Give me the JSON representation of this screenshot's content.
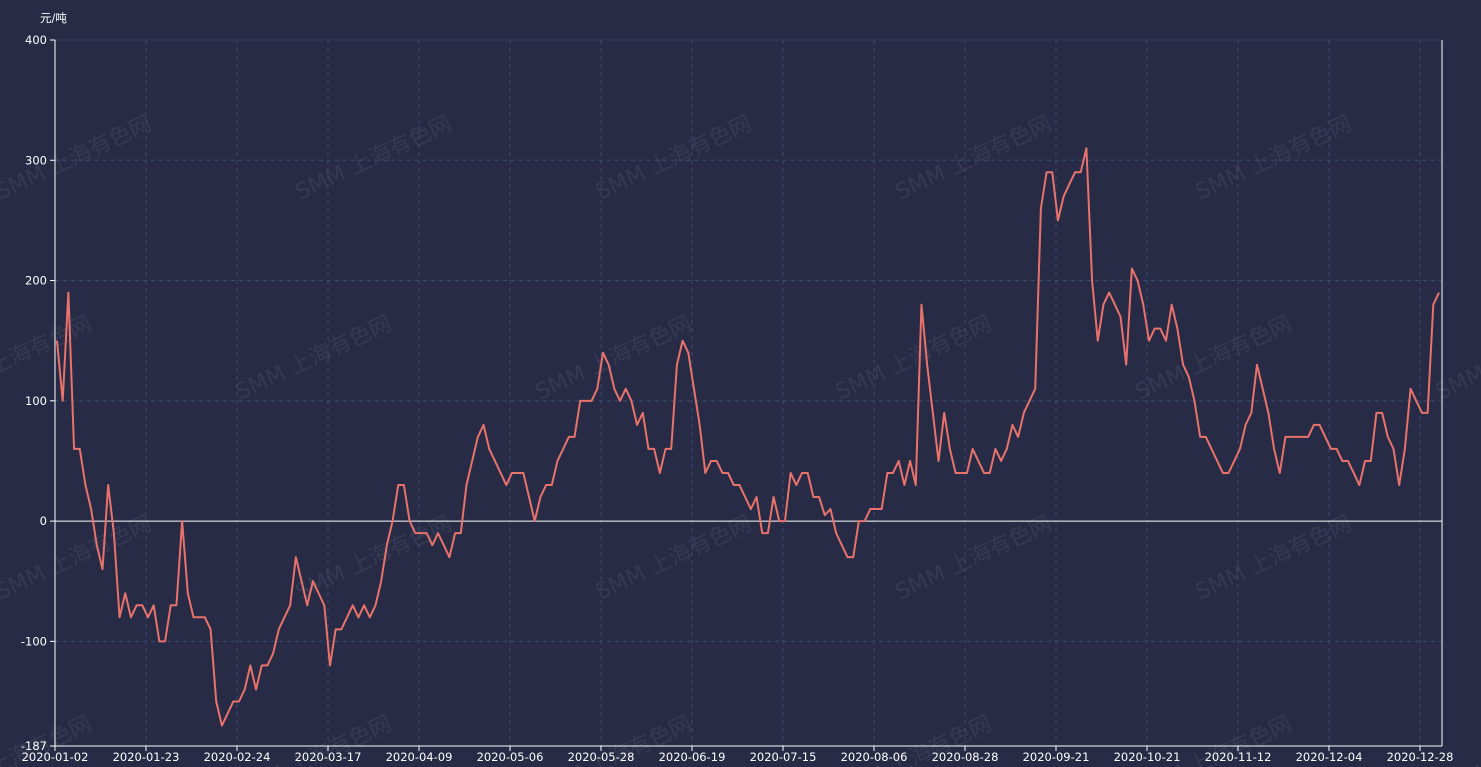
{
  "chart_data": {
    "type": "line",
    "title": "",
    "unit_label": "元/吨",
    "xlabel": "",
    "ylabel": "",
    "x_tick_labels": [
      "2020-01-02",
      "2020-01-23",
      "2020-02-24",
      "2020-03-17",
      "2020-04-09",
      "2020-05-06",
      "2020-05-28",
      "2020-06-19",
      "2020-07-15",
      "2020-08-06",
      "2020-08-28",
      "2020-09-21",
      "2020-10-21",
      "2020-11-12",
      "2020-12-04",
      "2020-12-28"
    ],
    "y_tick_labels": [
      "400",
      "300",
      "200",
      "100",
      "0",
      "-100",
      "-187"
    ],
    "ylim": [
      -187,
      400
    ],
    "grid": true,
    "line_color": "#e8736c",
    "watermark_text": "SMM 上海有色网",
    "series": [
      {
        "name": "",
        "values": [
          150,
          100,
          190,
          60,
          60,
          30,
          10,
          -20,
          -40,
          30,
          -10,
          -80,
          -60,
          -80,
          -70,
          -70,
          -80,
          -70,
          -100,
          -100,
          -70,
          -70,
          0,
          -60,
          -80,
          -80,
          -80,
          -90,
          -150,
          -170,
          -160,
          -150,
          -150,
          -140,
          -120,
          -140,
          -120,
          -120,
          -110,
          -90,
          -80,
          -70,
          -30,
          -50,
          -70,
          -50,
          -60,
          -70,
          -120,
          -90,
          -90,
          -80,
          -70,
          -80,
          -70,
          -80,
          -70,
          -50,
          -20,
          0,
          30,
          30,
          0,
          -10,
          -10,
          -10,
          -20,
          -10,
          -20,
          -30,
          -10,
          -10,
          30,
          50,
          70,
          80,
          60,
          50,
          40,
          30,
          40,
          40,
          40,
          20,
          0,
          20,
          30,
          30,
          50,
          60,
          70,
          70,
          100,
          100,
          100,
          110,
          140,
          130,
          110,
          100,
          110,
          100,
          80,
          90,
          60,
          60,
          40,
          60,
          60,
          130,
          150,
          140,
          110,
          80,
          40,
          50,
          50,
          40,
          40,
          30,
          30,
          20,
          10,
          20,
          -10,
          -10,
          20,
          0,
          0,
          40,
          30,
          40,
          40,
          20,
          20,
          5,
          10,
          -10,
          -20,
          -30,
          -30,
          0,
          0,
          10,
          10,
          10,
          40,
          40,
          50,
          30,
          50,
          30,
          180,
          130,
          90,
          50,
          90,
          60,
          40,
          40,
          40,
          60,
          50,
          40,
          40,
          60,
          50,
          60,
          80,
          70,
          90,
          100,
          110,
          260,
          290,
          290,
          250,
          270,
          280,
          290,
          290,
          310,
          200,
          150,
          180,
          190,
          180,
          170,
          130,
          210,
          200,
          180,
          150,
          160,
          160,
          150,
          180,
          160,
          130,
          120,
          100,
          70,
          70,
          60,
          50,
          40,
          40,
          50,
          60,
          80,
          90,
          130,
          110,
          90,
          60,
          40,
          70,
          70,
          70,
          70,
          70,
          80,
          80,
          70,
          60,
          60,
          50,
          50,
          40,
          30,
          50,
          50,
          90,
          90,
          70,
          60,
          30,
          60,
          110,
          100,
          90,
          90,
          180,
          190
        ]
      }
    ]
  }
}
